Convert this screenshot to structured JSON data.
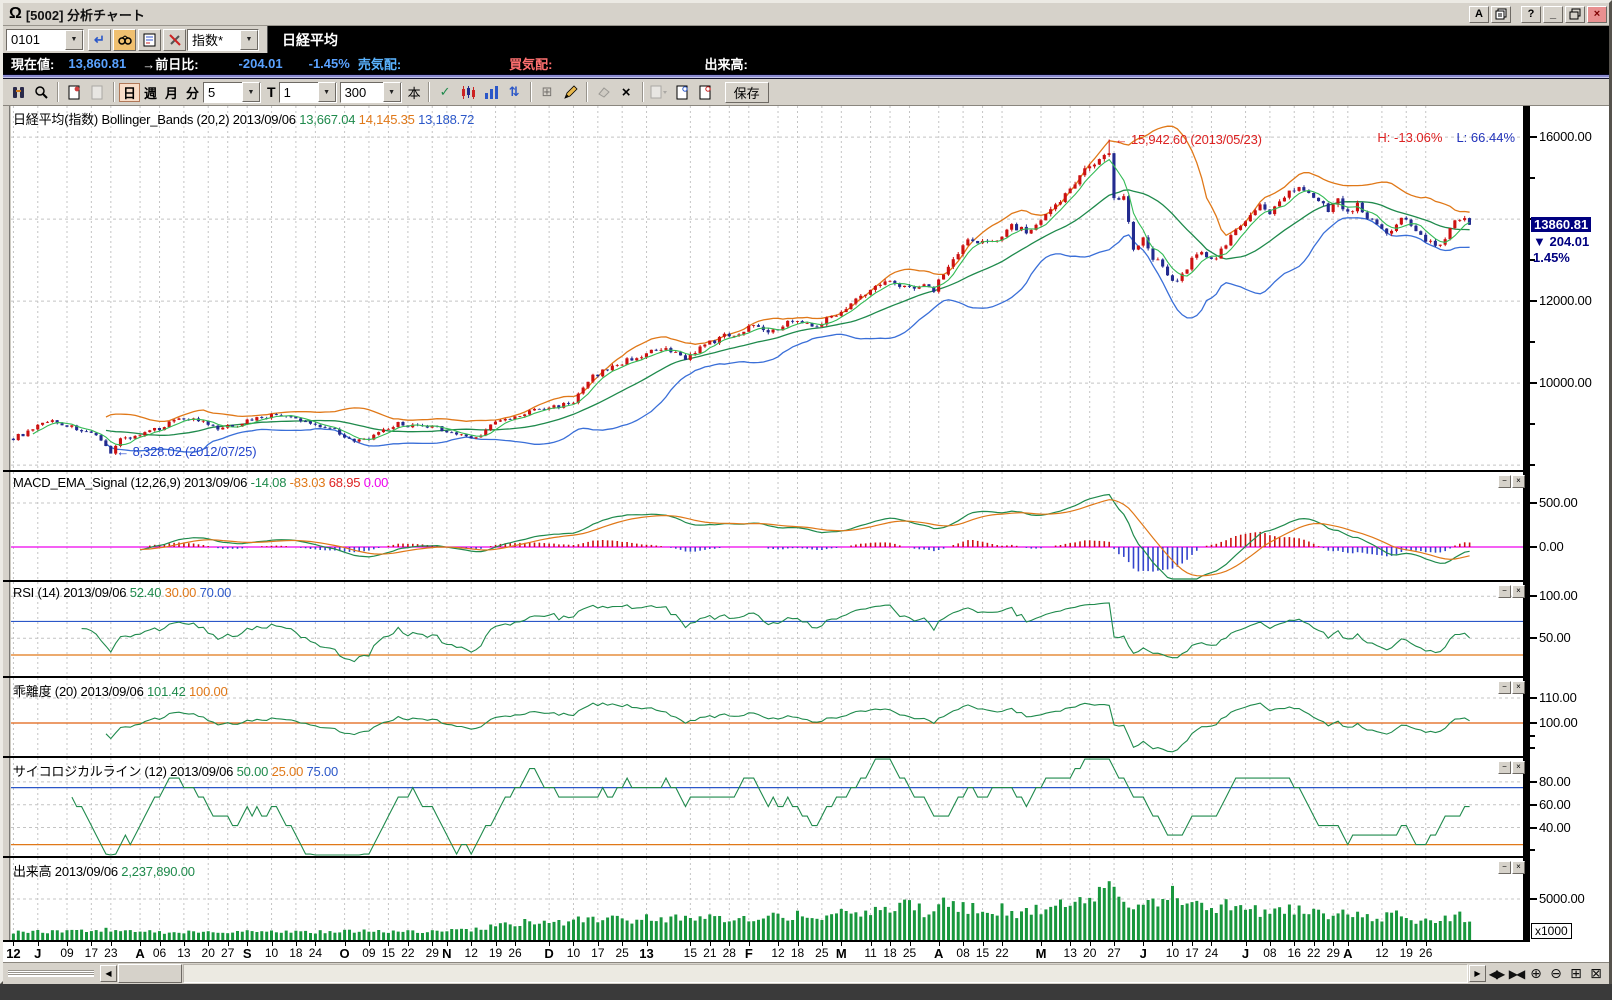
{
  "titlebar": {
    "logo_glyph": "Ω",
    "title": "[5002]  分析チャート",
    "btn_a": "A",
    "btn_help": "?",
    "btn_min": "_",
    "btn_close": "×"
  },
  "symbol_bar": {
    "code": "0101",
    "enter_glyph": "↵",
    "category": "指数*",
    "name": "日経平均",
    "dd_glyph": "▼"
  },
  "quote_bar": {
    "label_current": "現在値:",
    "current": "13,860.81",
    "label_change": "→前日比:",
    "change": "-204.01",
    "change_pct": "-1.45%",
    "label_ask": "売気配:",
    "label_bid": "買気配:",
    "label_volume": "出来高:"
  },
  "toolbar": {
    "periods": [
      "日",
      "週",
      "月",
      "分"
    ],
    "active_period": "日",
    "ma_select": "5",
    "t_label": "T",
    "interval_select": "1",
    "bars_select": "300",
    "unit_label": "本",
    "save_label": "保存",
    "glyphs": {
      "check": "✓",
      "arrows": "⇅",
      "grid": "⊞",
      "del": "×",
      "dd": "▼"
    }
  },
  "panel_controls": {
    "minimize": "−",
    "close": "×"
  },
  "panels": {
    "price": {
      "legend": [
        {
          "text": "日経平均(指数) Bollinger_Bands (20,2) 2013/09/06 ",
          "color": "#000000"
        },
        {
          "text": "13,667.04 ",
          "color": "#1f8a4c"
        },
        {
          "text": "14,145.35 ",
          "color": "#e07818"
        },
        {
          "text": "13,188.72",
          "color": "#2b57c8"
        }
      ],
      "high_low": [
        {
          "text": "H: -13.06%",
          "color": "#dd2222"
        },
        {
          "text": "L: 66.44%",
          "color": "#2233bb"
        }
      ],
      "annotations": [
        {
          "text": "← 15,942.60 (2013/05/23)",
          "bar": 225,
          "value": 15942.6,
          "color": "#dd2222"
        },
        {
          "text": "← 8,328.02 (2012/07/25)",
          "bar": 20,
          "value": 8328.02,
          "color": "#2244cc"
        }
      ],
      "price_tag": {
        "value": 13860.81,
        "value_label": "13860.81",
        "change": "▼ 204.01",
        "pct": "1.45%",
        "bg": "#000080",
        "fg": "#000080"
      }
    },
    "macd": {
      "legend": [
        {
          "text": "MACD_EMA_Signal (12,26,9) 2013/09/06 ",
          "color": "#000000"
        },
        {
          "text": "-14.08 ",
          "color": "#1f8a4c"
        },
        {
          "text": "-83.03 ",
          "color": "#e07818"
        },
        {
          "text": "68.95 ",
          "color": "#dd2222"
        },
        {
          "text": "0.00",
          "color": "#ee00ee"
        }
      ]
    },
    "rsi": {
      "legend": [
        {
          "text": "RSI (14) 2013/09/06 ",
          "color": "#000000"
        },
        {
          "text": "52.40 ",
          "color": "#1f8a4c"
        },
        {
          "text": "30.00 ",
          "color": "#e07818"
        },
        {
          "text": "70.00",
          "color": "#2b57c8"
        }
      ]
    },
    "kairi": {
      "legend": [
        {
          "text": "乖離度 (20) 2013/09/06 ",
          "color": "#000000"
        },
        {
          "text": "101.42 ",
          "color": "#1f8a4c"
        },
        {
          "text": "100.00",
          "color": "#e07818"
        }
      ]
    },
    "psych": {
      "legend": [
        {
          "text": "サイコロジカルライン (12) 2013/09/06 ",
          "color": "#000000"
        },
        {
          "text": "50.00 ",
          "color": "#1f8a4c"
        },
        {
          "text": "25.00 ",
          "color": "#e07818"
        },
        {
          "text": "75.00",
          "color": "#2b57c8"
        }
      ]
    },
    "volume": {
      "legend": [
        {
          "text": "出来高 2013/09/06 ",
          "color": "#000000"
        },
        {
          "text": "2,237,890.00",
          "color": "#1f8a4c"
        }
      ]
    }
  },
  "chart_data": {
    "type": "candlestick+indicators",
    "bars": 300,
    "data_width": 1461,
    "grid_color": "#c4c4c4",
    "price": {
      "ylim": [
        7880,
        16760
      ],
      "yticks_labeled": [
        [
          16000,
          "16000.00"
        ],
        [
          12000,
          "12000.00"
        ],
        [
          10000,
          "10000.00"
        ]
      ],
      "yticks_minor": [
        15000,
        14000,
        13000,
        11000,
        9000,
        8000
      ],
      "gridlines": [
        16000,
        14000,
        12000,
        10000,
        8000
      ],
      "colors": {
        "up": "#cc1111",
        "down": "#232b8f",
        "upper": "#e07818",
        "mid": "#1f8a4c",
        "fast": "#33bb55",
        "lower": "#3a6fd8"
      },
      "anchors": [
        [
          0,
          8660
        ],
        [
          4,
          8850
        ],
        [
          7,
          9100
        ],
        [
          10,
          9000
        ],
        [
          14,
          8850
        ],
        [
          17,
          8680
        ],
        [
          20,
          8328
        ],
        [
          22,
          8640
        ],
        [
          26,
          8730
        ],
        [
          30,
          8900
        ],
        [
          34,
          9170
        ],
        [
          38,
          9090
        ],
        [
          42,
          8870
        ],
        [
          46,
          8990
        ],
        [
          50,
          9160
        ],
        [
          55,
          9230
        ],
        [
          58,
          9110
        ],
        [
          62,
          8990
        ],
        [
          66,
          8870
        ],
        [
          70,
          8550
        ],
        [
          74,
          8700
        ],
        [
          79,
          9010
        ],
        [
          83,
          8930
        ],
        [
          87,
          8910
        ],
        [
          91,
          8750
        ],
        [
          95,
          8664
        ],
        [
          99,
          9050
        ],
        [
          103,
          9150
        ],
        [
          107,
          9350
        ],
        [
          111,
          9420
        ],
        [
          115,
          9550
        ],
        [
          119,
          10160
        ],
        [
          123,
          10400
        ],
        [
          127,
          10600
        ],
        [
          131,
          10750
        ],
        [
          134,
          10800
        ],
        [
          138,
          10620
        ],
        [
          142,
          10920
        ],
        [
          146,
          11150
        ],
        [
          150,
          11250
        ],
        [
          152,
          11460
        ],
        [
          156,
          11250
        ],
        [
          160,
          11560
        ],
        [
          164,
          11385
        ],
        [
          168,
          11606
        ],
        [
          172,
          11950
        ],
        [
          176,
          12250
        ],
        [
          180,
          12560
        ],
        [
          183,
          12340
        ],
        [
          186,
          12380
        ],
        [
          189,
          12300
        ],
        [
          191,
          12680
        ],
        [
          194,
          13200
        ],
        [
          196,
          13480
        ],
        [
          199,
          13400
        ],
        [
          202,
          13550
        ],
        [
          205,
          13850
        ],
        [
          208,
          13690
        ],
        [
          210,
          13800
        ],
        [
          213,
          14180
        ],
        [
          216,
          14600
        ],
        [
          219,
          15100
        ],
        [
          222,
          15360
        ],
        [
          225,
          15700
        ],
        [
          226,
          14483
        ],
        [
          228,
          14612
        ],
        [
          230,
          13260
        ],
        [
          232,
          13590
        ],
        [
          234,
          13010
        ],
        [
          236,
          12904
        ],
        [
          238,
          12450
        ],
        [
          240,
          12686
        ],
        [
          242,
          13010
        ],
        [
          244,
          13230
        ],
        [
          246,
          12970
        ],
        [
          248,
          13240
        ],
        [
          250,
          13560
        ],
        [
          252,
          13870
        ],
        [
          254,
          14110
        ],
        [
          256,
          14310
        ],
        [
          258,
          14130
        ],
        [
          260,
          14410
        ],
        [
          262,
          14610
        ],
        [
          264,
          14810
        ],
        [
          266,
          14580
        ],
        [
          268,
          14400
        ],
        [
          270,
          14250
        ],
        [
          272,
          14470
        ],
        [
          274,
          14100
        ],
        [
          276,
          14400
        ],
        [
          278,
          14050
        ],
        [
          280,
          13820
        ],
        [
          282,
          13600
        ],
        [
          284,
          13870
        ],
        [
          286,
          14070
        ],
        [
          288,
          13660
        ],
        [
          290,
          13460
        ],
        [
          292,
          13340
        ],
        [
          294,
          13570
        ],
        [
          296,
          13980
        ],
        [
          298,
          14060
        ],
        [
          299,
          13860.81
        ]
      ],
      "peak": {
        "bar": 225,
        "high": 15942.6
      },
      "trough": {
        "bar": 20,
        "low": 8328.02
      }
    },
    "macd": {
      "ylim": [
        -375,
        852
      ],
      "yticks_labeled": [
        [
          500,
          "500.00"
        ],
        [
          0,
          "0.00"
        ]
      ],
      "gridlines": [
        500
      ],
      "colors": {
        "macd": "#1f8a4c",
        "signal": "#e07818",
        "hist_pos": "#cc1111",
        "hist_neg": "#3344cc",
        "zero": "#ee00ee"
      }
    },
    "rsi": {
      "ylim": [
        5,
        117
      ],
      "yticks_labeled": [
        [
          100,
          "100.00"
        ],
        [
          50,
          "50.00"
        ]
      ],
      "gridlines": [
        100,
        50
      ],
      "upper": 70,
      "lower": 30,
      "colors": {
        "line": "#1f8a4c",
        "upper": "#2b57c8",
        "lower": "#e07818"
      }
    },
    "kairi": {
      "ylim": [
        86.8,
        118
      ],
      "yticks_labeled": [
        [
          110,
          "110.00"
        ],
        [
          100,
          "100.00"
        ]
      ],
      "yticks_minor": [
        95,
        90
      ],
      "gridlines": [
        110,
        100
      ],
      "base": 100,
      "colors": {
        "line": "#1f8a4c",
        "base": "#e06010"
      }
    },
    "psych": {
      "ylim": [
        15,
        101
      ],
      "yticks_labeled": [
        [
          80,
          "80.00"
        ],
        [
          60,
          "60.00"
        ],
        [
          40,
          "40.00"
        ]
      ],
      "yticks_minor": [
        20
      ],
      "gridlines": [
        80,
        60,
        40
      ],
      "upper": 75,
      "lower": 25,
      "colors": {
        "line": "#1f8a4c",
        "upper": "#2b57c8",
        "lower": "#e07818"
      }
    },
    "volume": {
      "ylim": [
        0,
        10000
      ],
      "yticks_labeled": [
        [
          5000,
          "5000.00"
        ]
      ],
      "gridlines": [
        5000
      ],
      "unit_label": "x1000",
      "colors": {
        "bar": "#18973d"
      },
      "anchors": [
        [
          0,
          950
        ],
        [
          10,
          1050
        ],
        [
          20,
          1250
        ],
        [
          30,
          950
        ],
        [
          40,
          1000
        ],
        [
          50,
          1100
        ],
        [
          60,
          950
        ],
        [
          70,
          1080
        ],
        [
          80,
          1000
        ],
        [
          90,
          1150
        ],
        [
          95,
          1350
        ],
        [
          100,
          1750
        ],
        [
          105,
          2100
        ],
        [
          110,
          2050
        ],
        [
          115,
          2250
        ],
        [
          119,
          2650
        ],
        [
          125,
          2400
        ],
        [
          130,
          2650
        ],
        [
          135,
          2500
        ],
        [
          140,
          2750
        ],
        [
          145,
          2600
        ],
        [
          150,
          2950
        ],
        [
          155,
          2700
        ],
        [
          160,
          3050
        ],
        [
          165,
          2850
        ],
        [
          170,
          3150
        ],
        [
          175,
          3350
        ],
        [
          180,
          3550
        ],
        [
          183,
          4150
        ],
        [
          186,
          3650
        ],
        [
          189,
          3350
        ],
        [
          191,
          4650
        ],
        [
          194,
          4150
        ],
        [
          197,
          3850
        ],
        [
          200,
          3550
        ],
        [
          203,
          3750
        ],
        [
          206,
          3450
        ],
        [
          210,
          3850
        ],
        [
          213,
          4250
        ],
        [
          216,
          4050
        ],
        [
          219,
          4450
        ],
        [
          222,
          4800
        ],
        [
          225,
          7400
        ],
        [
          227,
          5400
        ],
        [
          230,
          4700
        ],
        [
          233,
          5100
        ],
        [
          236,
          4700
        ],
        [
          238,
          5400
        ],
        [
          240,
          4800
        ],
        [
          243,
          4400
        ],
        [
          246,
          4050
        ],
        [
          249,
          4250
        ],
        [
          252,
          3850
        ],
        [
          255,
          3650
        ],
        [
          258,
          3450
        ],
        [
          261,
          3750
        ],
        [
          264,
          3450
        ],
        [
          267,
          3150
        ],
        [
          270,
          2950
        ],
        [
          273,
          3150
        ],
        [
          276,
          2850
        ],
        [
          280,
          2650
        ],
        [
          284,
          2950
        ],
        [
          288,
          2550
        ],
        [
          292,
          2350
        ],
        [
          295,
          2650
        ],
        [
          297,
          2950
        ],
        [
          299,
          2238
        ]
      ]
    },
    "xlabels": [
      {
        "t": "12",
        "i": 0,
        "b": true
      },
      {
        "t": "J",
        "i": 5,
        "b": true
      },
      {
        "t": "09",
        "i": 11
      },
      {
        "t": "17",
        "i": 16
      },
      {
        "t": "23",
        "i": 20
      },
      {
        "t": "A",
        "i": 26,
        "b": true
      },
      {
        "t": "06",
        "i": 30
      },
      {
        "t": "13",
        "i": 35
      },
      {
        "t": "20",
        "i": 40
      },
      {
        "t": "27",
        "i": 44
      },
      {
        "t": "S",
        "i": 48,
        "b": true
      },
      {
        "t": "10",
        "i": 53
      },
      {
        "t": "18",
        "i": 58
      },
      {
        "t": "24",
        "i": 62
      },
      {
        "t": "O",
        "i": 68,
        "b": true
      },
      {
        "t": "09",
        "i": 73
      },
      {
        "t": "15",
        "i": 77
      },
      {
        "t": "22",
        "i": 81
      },
      {
        "t": "29",
        "i": 86
      },
      {
        "t": "N",
        "i": 89,
        "b": true
      },
      {
        "t": "12",
        "i": 94
      },
      {
        "t": "19",
        "i": 99
      },
      {
        "t": "26",
        "i": 103
      },
      {
        "t": "D",
        "i": 110,
        "b": true
      },
      {
        "t": "10",
        "i": 115
      },
      {
        "t": "17",
        "i": 120
      },
      {
        "t": "25",
        "i": 125
      },
      {
        "t": "13",
        "i": 130,
        "b": true
      },
      {
        "t": "15",
        "i": 139
      },
      {
        "t": "21",
        "i": 143
      },
      {
        "t": "28",
        "i": 147
      },
      {
        "t": "F",
        "i": 151,
        "b": true
      },
      {
        "t": "12",
        "i": 157
      },
      {
        "t": "18",
        "i": 161
      },
      {
        "t": "25",
        "i": 166
      },
      {
        "t": "M",
        "i": 170,
        "b": true
      },
      {
        "t": "11",
        "i": 176
      },
      {
        "t": "18",
        "i": 180
      },
      {
        "t": "25",
        "i": 184
      },
      {
        "t": "A",
        "i": 190,
        "b": true
      },
      {
        "t": "08",
        "i": 195
      },
      {
        "t": "15",
        "i": 199
      },
      {
        "t": "22",
        "i": 203
      },
      {
        "t": "M",
        "i": 211,
        "b": true
      },
      {
        "t": "13",
        "i": 217
      },
      {
        "t": "20",
        "i": 221
      },
      {
        "t": "27",
        "i": 226
      },
      {
        "t": "J",
        "i": 232,
        "b": true
      },
      {
        "t": "10",
        "i": 238
      },
      {
        "t": "17",
        "i": 242
      },
      {
        "t": "24",
        "i": 246
      },
      {
        "t": "J",
        "i": 253,
        "b": true
      },
      {
        "t": "08",
        "i": 258
      },
      {
        "t": "16",
        "i": 263
      },
      {
        "t": "22",
        "i": 267
      },
      {
        "t": "29",
        "i": 271
      },
      {
        "t": "A",
        "i": 274,
        "b": true
      },
      {
        "t": "12",
        "i": 281
      },
      {
        "t": "19",
        "i": 286
      },
      {
        "t": "26",
        "i": 290
      }
    ]
  },
  "scrollbar": {
    "left": "◀",
    "right": "▶",
    "icons": [
      "◀▶",
      "▶◀",
      "⊕",
      "⊖",
      "⊞",
      "⊠"
    ]
  }
}
